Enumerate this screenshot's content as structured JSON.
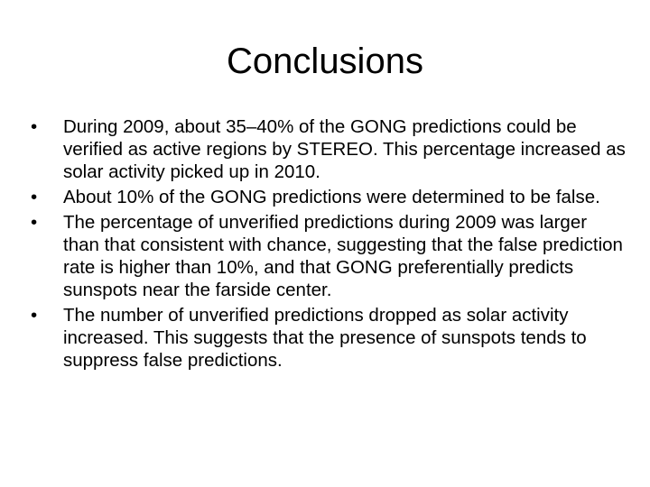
{
  "slide": {
    "title": "Conclusions",
    "bullet_symbol": "•",
    "bullets": [
      "During 2009, about 35–40% of the GONG predictions could be verified as active regions by STEREO.  This percentage increased as solar activity picked up in 2010.",
      "About 10% of the GONG predictions were determined to be false.",
      "The percentage of unverified predictions during 2009 was larger than that consistent with chance, suggesting that the false prediction rate is higher than 10%, and that GONG preferentially predicts sunspots near the farside center.",
      "The number of unverified predictions dropped as solar activity increased.  This suggests that the presence of sunspots tends to suppress false predictions."
    ]
  }
}
